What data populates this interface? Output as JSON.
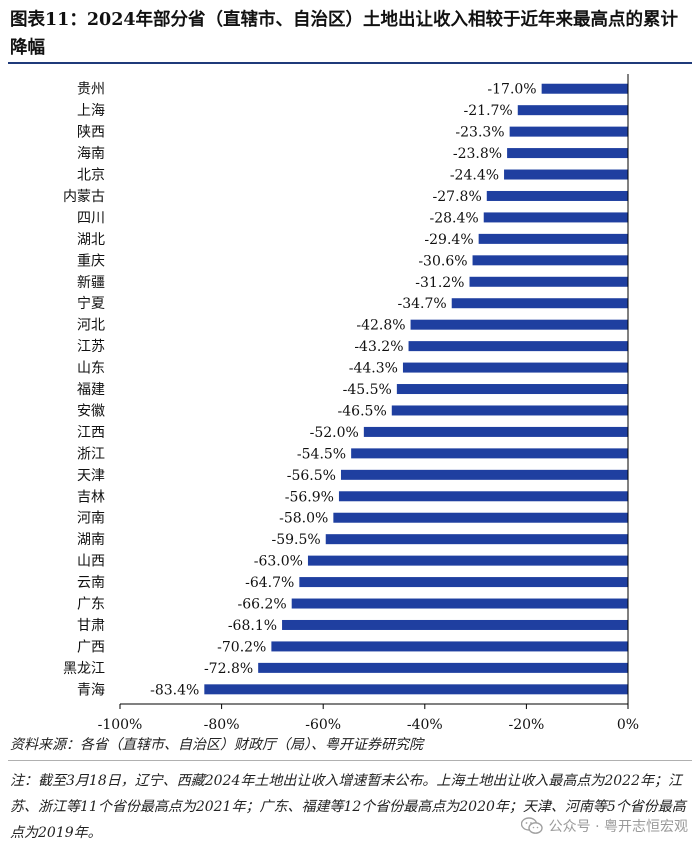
{
  "title": "图表11：2024年部分省（直辖市、自治区）土地出让收入相较于近年来最高点的累计降幅",
  "source": "资料来源：各省（直辖市、自治区）财政厅（局）、粤开证券研究院",
  "note": "注：截至3月18日，辽宁、西藏2024年土地出让收入增速暂未公布。上海土地出让收入最高点为2022年；江苏、浙江等11个省份最高点为2021年；广东、福建等12个省份最高点为2020年；天津、河南等5个省份最高点为2019年。",
  "watermark": "公众号 · 粤开志恒宏观",
  "colors": {
    "bar": "#1f3fa0",
    "axis": "#000000"
  },
  "chart_data": {
    "type": "bar",
    "orientation": "horizontal",
    "categories": [
      "贵州",
      "上海",
      "陕西",
      "海南",
      "北京",
      "内蒙古",
      "四川",
      "湖北",
      "重庆",
      "新疆",
      "宁夏",
      "河北",
      "江苏",
      "山东",
      "福建",
      "安徽",
      "江西",
      "浙江",
      "天津",
      "吉林",
      "河南",
      "湖南",
      "山西",
      "云南",
      "广东",
      "甘肃",
      "广西",
      "黑龙江",
      "青海"
    ],
    "values": [
      -17.0,
      -21.7,
      -23.3,
      -23.8,
      -24.4,
      -27.8,
      -28.4,
      -29.4,
      -30.6,
      -31.2,
      -34.7,
      -42.8,
      -43.2,
      -44.3,
      -45.5,
      -46.5,
      -52.0,
      -54.5,
      -56.5,
      -56.9,
      -58.0,
      -59.5,
      -63.0,
      -64.7,
      -66.2,
      -68.1,
      -70.2,
      -72.8,
      -83.4
    ],
    "value_labels": [
      "-17.0%",
      "-21.7%",
      "-23.3%",
      "-23.8%",
      "-24.4%",
      "-27.8%",
      "-28.4%",
      "-29.4%",
      "-30.6%",
      "-31.2%",
      "-34.7%",
      "-42.8%",
      "-43.2%",
      "-44.3%",
      "-45.5%",
      "-46.5%",
      "-52.0%",
      "-54.5%",
      "-56.5%",
      "-56.9%",
      "-58.0%",
      "-59.5%",
      "-63.0%",
      "-64.7%",
      "-66.2%",
      "-68.1%",
      "-70.2%",
      "-72.8%",
      "-83.4%"
    ],
    "xlim": [
      -100,
      0
    ],
    "xticks": [
      -100,
      -80,
      -60,
      -40,
      -20,
      0
    ],
    "xtick_labels": [
      "-100%",
      "-80%",
      "-60%",
      "-40%",
      "-20%",
      "0%"
    ],
    "grid": false,
    "legend": false
  }
}
